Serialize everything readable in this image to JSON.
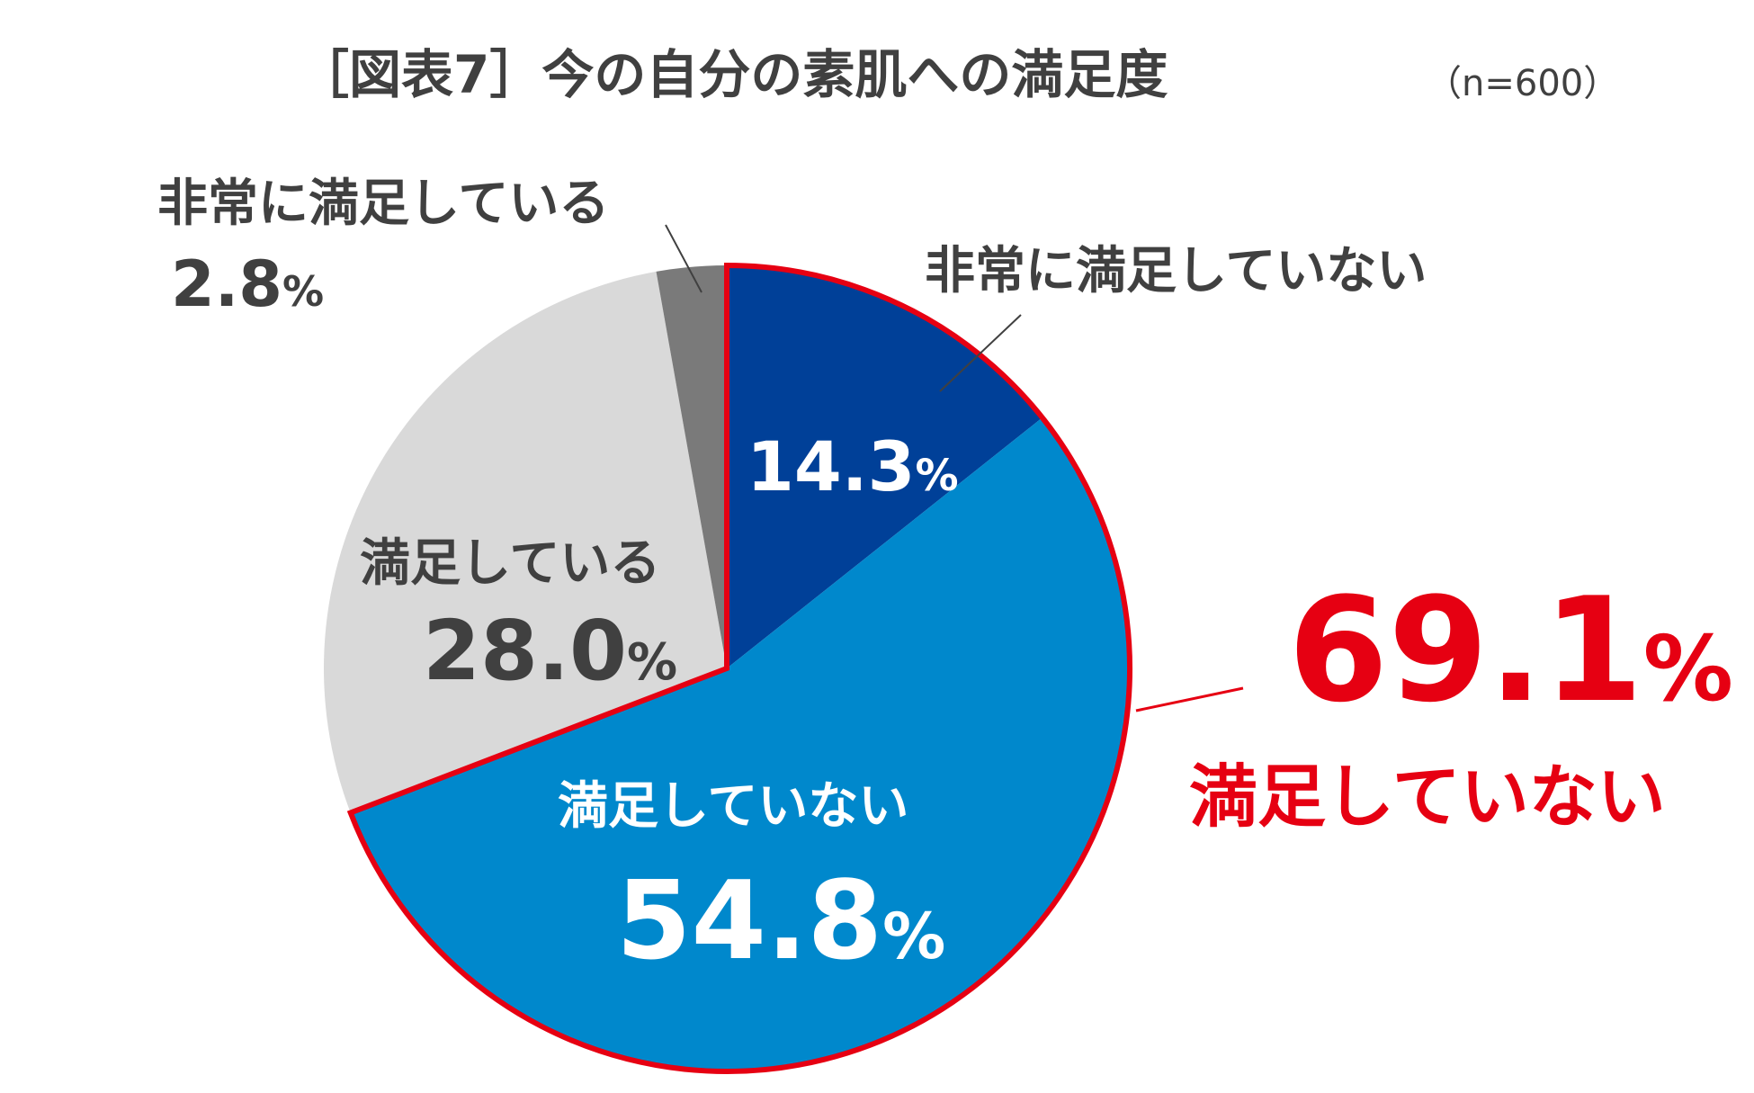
{
  "title": "［図表7］今の自分の素肌への満足度",
  "sample_size": "（n=600）",
  "summary": {
    "value": "69.1",
    "unit": "%",
    "label": "満足していない",
    "color": "#e60012"
  },
  "chart_data": {
    "type": "pie",
    "title": "［図表7］今の自分の素肌への満足度",
    "n": 600,
    "start": "12 o'clock, clockwise",
    "slices": [
      {
        "label": "非常に満足していない",
        "value": 14.3,
        "display": "14.3",
        "unit": "%",
        "color": "#004098"
      },
      {
        "label": "満足していない",
        "value": 54.8,
        "display": "54.8",
        "unit": "%",
        "color": "#0088cc"
      },
      {
        "label": "満足している",
        "value": 28.0,
        "display": "28.0",
        "unit": "%",
        "color": "#d9d9d9"
      },
      {
        "label": "非常に満足している",
        "value": 2.8,
        "display": "2.8",
        "unit": "%",
        "color": "#7a7a7a"
      }
    ],
    "highlight": {
      "slices": [
        "非常に満足していない",
        "満足していない"
      ],
      "total": 69.1,
      "outline_color": "#e60012"
    }
  }
}
